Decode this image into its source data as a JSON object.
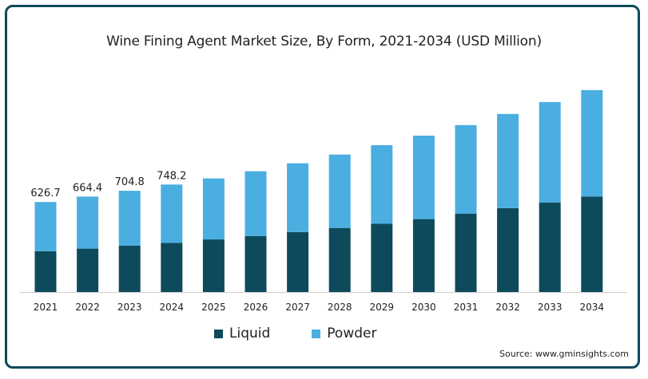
{
  "chart_data": {
    "type": "bar",
    "stacked": true,
    "title": "Wine Fining Agent Market Size, By Form, 2021-2034 (USD Million)",
    "xlabel": "",
    "ylabel": "",
    "categories": [
      "2021",
      "2022",
      "2023",
      "2024",
      "2025",
      "2026",
      "2027",
      "2028",
      "2029",
      "2030",
      "2031",
      "2032",
      "2033",
      "2034"
    ],
    "series": [
      {
        "name": "Liquid",
        "color": "#0d4a5c",
        "values": [
          284,
          302,
          322,
          342,
          366,
          390,
          418,
          446,
          476,
          508,
          546,
          584,
          624,
          665
        ]
      },
      {
        "name": "Powder",
        "color": "#4aaee0",
        "values": [
          342.7,
          362.4,
          382.8,
          406.2,
          425,
          451,
          478,
          511,
          547,
          581,
          616,
          656,
          699,
          741
        ]
      }
    ],
    "totals_labeled": [
      "626.7",
      "664.4",
      "704.8",
      "748.2",
      "",
      "",
      "",
      "",
      "",
      "",
      "",
      "",
      "",
      ""
    ],
    "ylim": [
      0,
      1470
    ],
    "grid": false,
    "legend_position": "bottom"
  },
  "source": "Source: www.gminsights.com",
  "colors": {
    "border": "#0d4a5c",
    "liquid": "#0d4a5c",
    "powder": "#4aaee0"
  }
}
